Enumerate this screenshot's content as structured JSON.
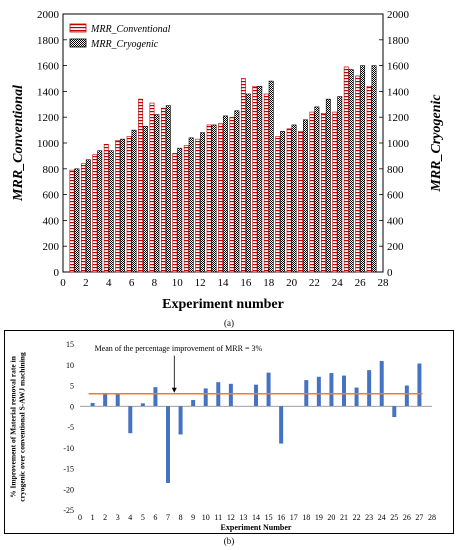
{
  "chart_data": [
    {
      "type": "bar",
      "panel_label": "(a)",
      "xlabel": "Experiment number",
      "ylabel_left": "MRR_Conventional",
      "ylabel_right": "MRR_Cryogenic",
      "xlim": [
        0,
        28
      ],
      "ylim": [
        0,
        2000
      ],
      "x_ticks": [
        0,
        2,
        4,
        6,
        8,
        10,
        12,
        14,
        16,
        18,
        20,
        22,
        24,
        26,
        28
      ],
      "y_ticks": [
        0,
        200,
        400,
        600,
        800,
        1000,
        1200,
        1400,
        1600,
        1800,
        2000
      ],
      "legend_position": "top-left",
      "grid": false,
      "x": [
        1,
        2,
        3,
        4,
        5,
        6,
        7,
        8,
        9,
        10,
        11,
        12,
        13,
        14,
        15,
        16,
        17,
        18,
        19,
        20,
        21,
        22,
        23,
        24,
        25,
        26,
        27
      ],
      "series": [
        {
          "name": "MRR_Conventional",
          "pattern": "red-outline-horizontal-stripes",
          "values": [
            790,
            840,
            910,
            990,
            1020,
            1050,
            1340,
            1310,
            1270,
            920,
            980,
            1030,
            1140,
            1150,
            1200,
            1500,
            1440,
            1380,
            1050,
            1110,
            1090,
            1240,
            1230,
            1240,
            1590,
            1520,
            1440
          ]
        },
        {
          "name": "MRR_Cryogenic",
          "pattern": "black-dense-checker",
          "values": [
            800,
            870,
            940,
            940,
            1030,
            1100,
            1130,
            1220,
            1290,
            960,
            1040,
            1080,
            1140,
            1210,
            1250,
            1380,
            1440,
            1480,
            1090,
            1140,
            1180,
            1280,
            1340,
            1360,
            1570,
            1600,
            1600
          ]
        }
      ]
    },
    {
      "type": "bar",
      "panel_label": "(b)",
      "xlabel": "Experiment  Number",
      "ylabel": "% Improvement  of Material removal rate in cryogenic over conventional S-AWJ machining",
      "annotation": "Mean of the percentage improvement of MRR = 3%",
      "mean_value": 3,
      "xlim": [
        0,
        28
      ],
      "ylim": [
        -25,
        15
      ],
      "x_ticks": [
        0,
        1,
        2,
        3,
        4,
        5,
        6,
        7,
        8,
        9,
        10,
        11,
        12,
        13,
        14,
        15,
        16,
        17,
        18,
        19,
        20,
        21,
        22,
        23,
        24,
        25,
        26,
        27,
        28
      ],
      "y_ticks": [
        -25,
        -20,
        -15,
        -10,
        -5,
        0,
        5,
        10,
        15
      ],
      "bar_color": "#4472c4",
      "mean_line_color": "#ed7d31",
      "x": [
        1,
        2,
        3,
        4,
        5,
        6,
        7,
        8,
        9,
        10,
        11,
        12,
        13,
        14,
        15,
        16,
        17,
        18,
        19,
        20,
        21,
        22,
        23,
        24,
        25,
        26,
        27
      ],
      "values": [
        0.8,
        3.2,
        3.0,
        -6.5,
        0.7,
        4.6,
        -18.5,
        -6.8,
        1.5,
        4.3,
        5.8,
        5.4,
        0,
        5.2,
        8.1,
        -9.0,
        0,
        6.3,
        7.1,
        8.0,
        7.4,
        4.5,
        8.7,
        10.9,
        -2.6,
        5.0,
        10.3
      ]
    }
  ],
  "captions": {
    "a": "(a)",
    "b": "(b)"
  }
}
